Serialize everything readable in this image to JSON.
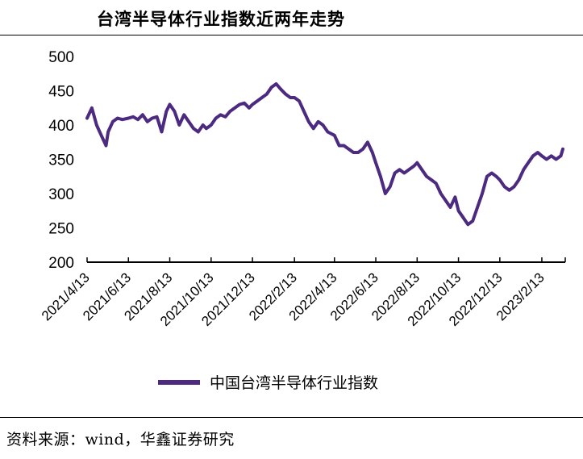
{
  "header": {
    "title": "台湾半导体行业指数近两年走势"
  },
  "footer": {
    "source": "资料来源：wind，华鑫证券研究"
  },
  "colors": {
    "series": "#4b2a80",
    "axis": "#000000"
  },
  "chart_data": {
    "type": "line",
    "title": "台湾半导体行业指数近两年走势",
    "xlabel": "",
    "ylabel": "",
    "ylim": [
      200,
      500
    ],
    "yticks": [
      200,
      250,
      300,
      350,
      400,
      450,
      500
    ],
    "grid": false,
    "legend": "bottom-center",
    "categories": [
      "2021/4/13",
      "2021/6/13",
      "2021/8/13",
      "2021/10/13",
      "2021/12/13",
      "2022/2/13",
      "2022/4/13",
      "2022/6/13",
      "2022/8/13",
      "2022/10/13",
      "2022/12/13",
      "2023/2/13"
    ],
    "series": [
      {
        "name": "中国台湾半导体行业指数",
        "x": [
          "2021/4/13",
          "2021/4/20",
          "2021/4/27",
          "2021/5/4",
          "2021/5/11",
          "2021/5/14",
          "2021/5/21",
          "2021/5/28",
          "2021/6/4",
          "2021/6/13",
          "2021/6/20",
          "2021/6/27",
          "2021/7/4",
          "2021/7/11",
          "2021/7/18",
          "2021/7/25",
          "2021/8/1",
          "2021/8/8",
          "2021/8/13",
          "2021/8/20",
          "2021/8/27",
          "2021/9/3",
          "2021/9/10",
          "2021/9/17",
          "2021/9/24",
          "2021/10/1",
          "2021/10/6",
          "2021/10/13",
          "2021/10/20",
          "2021/10/27",
          "2021/11/3",
          "2021/11/10",
          "2021/11/17",
          "2021/11/24",
          "2021/12/1",
          "2021/12/8",
          "2021/12/13",
          "2021/12/20",
          "2021/12/27",
          "2022/1/3",
          "2022/1/10",
          "2022/1/17",
          "2022/1/24",
          "2022/1/31",
          "2022/2/7",
          "2022/2/13",
          "2022/2/20",
          "2022/2/27",
          "2022/3/6",
          "2022/3/13",
          "2022/3/20",
          "2022/3/27",
          "2022/4/3",
          "2022/4/13",
          "2022/4/20",
          "2022/4/27",
          "2022/5/4",
          "2022/5/11",
          "2022/5/18",
          "2022/5/25",
          "2022/6/1",
          "2022/6/8",
          "2022/6/13",
          "2022/6/20",
          "2022/6/27",
          "2022/7/4",
          "2022/7/11",
          "2022/7/18",
          "2022/7/25",
          "2022/8/1",
          "2022/8/8",
          "2022/8/13",
          "2022/8/20",
          "2022/8/27",
          "2022/9/3",
          "2022/9/10",
          "2022/9/17",
          "2022/9/24",
          "2022/10/1",
          "2022/10/8",
          "2022/10/13",
          "2022/10/20",
          "2022/10/27",
          "2022/11/3",
          "2022/11/10",
          "2022/11/17",
          "2022/11/24",
          "2022/12/1",
          "2022/12/8",
          "2022/12/13",
          "2022/12/20",
          "2022/12/27",
          "2023/1/3",
          "2023/1/10",
          "2023/1/17",
          "2023/1/24",
          "2023/1/31",
          "2023/2/7",
          "2023/2/13",
          "2023/2/20",
          "2023/2/27",
          "2023/3/6",
          "2023/3/13",
          "2023/3/16"
        ],
        "values": [
          410,
          425,
          400,
          385,
          370,
          390,
          405,
          410,
          408,
          410,
          412,
          408,
          415,
          405,
          410,
          412,
          390,
          420,
          430,
          420,
          400,
          415,
          405,
          395,
          390,
          400,
          395,
          400,
          410,
          415,
          412,
          420,
          425,
          430,
          432,
          425,
          430,
          435,
          440,
          445,
          455,
          460,
          452,
          445,
          440,
          440,
          435,
          420,
          405,
          395,
          405,
          400,
          390,
          385,
          370,
          370,
          365,
          360,
          360,
          365,
          375,
          360,
          345,
          325,
          300,
          310,
          330,
          335,
          330,
          335,
          340,
          345,
          335,
          325,
          320,
          315,
          300,
          290,
          280,
          295,
          275,
          265,
          255,
          260,
          280,
          300,
          325,
          330,
          325,
          320,
          310,
          305,
          310,
          320,
          335,
          345,
          355,
          360,
          355,
          350,
          355,
          350,
          355,
          365
        ]
      }
    ]
  }
}
